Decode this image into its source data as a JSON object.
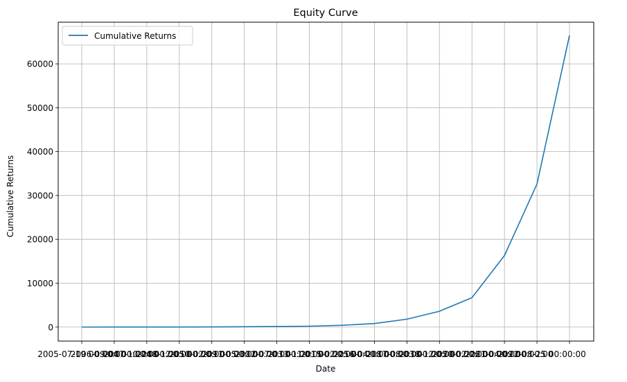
{
  "chart_data": {
    "type": "line",
    "title": "Equity Curve",
    "xlabel": "Date",
    "ylabel": "Cumulative Returns",
    "x_tick_labels": [
      "2005-07-19 00:00:00",
      "2006-09-04 00:00:00",
      "2007-10-24 00:00:00",
      "2008-12-05 00:00:00",
      "2010-02-09 00:00:00",
      "2011-05-30 00:00:00",
      "2012-07-03 00:00:00",
      "2013-11-01 00:00:00",
      "2015-02-25 00:00:00",
      "2016-04-18 00:00:00",
      "2017-08-03 00:00:00",
      "2018-12-05 00:00:00",
      "2020-02-26 00:00:00",
      "2021-04-09 00:00:00",
      "2022-08-25 00:00:00"
    ],
    "series": [
      {
        "name": "Cumulative Returns",
        "color": "#1f77b4",
        "values": [
          2,
          4,
          8,
          16,
          32,
          64,
          128,
          200,
          400,
          800,
          1800,
          3600,
          6700,
          16300,
          32600,
          66500
        ]
      }
    ],
    "y_ticks": [
      0,
      10000,
      20000,
      30000,
      40000,
      50000,
      60000
    ],
    "y_tick_labels": [
      "0",
      "10000",
      "20000",
      "30000",
      "40000",
      "50000",
      "60000"
    ],
    "ylim": [
      -3200,
      69500
    ],
    "grid": true,
    "legend_position": "upper left"
  }
}
